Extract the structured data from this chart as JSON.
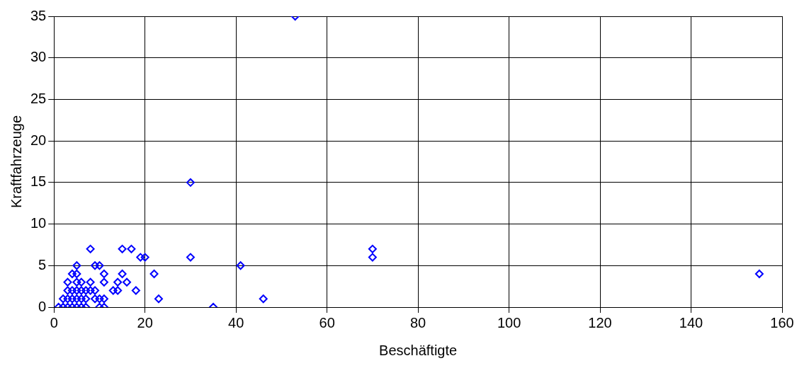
{
  "chart_data": {
    "type": "scatter",
    "xlabel": "Beschäftigte",
    "ylabel": "Kraftfahrzeuge",
    "x": [
      1,
      2,
      3,
      4,
      5,
      6,
      7,
      10,
      11,
      35,
      2,
      3,
      4,
      5,
      6,
      7,
      9,
      10,
      11,
      23,
      46,
      3,
      4,
      5,
      6,
      7,
      8,
      9,
      13,
      14,
      18,
      3,
      5,
      6,
      8,
      11,
      14,
      16,
      4,
      5,
      11,
      15,
      22,
      155,
      5,
      9,
      10,
      41,
      19,
      20,
      30,
      70,
      8,
      15,
      17,
      70,
      30,
      53
    ],
    "values": [
      0,
      0,
      0,
      0,
      0,
      0,
      0,
      0,
      0,
      0,
      1,
      1,
      1,
      1,
      1,
      1,
      1,
      1,
      1,
      1,
      1,
      2,
      2,
      2,
      2,
      2,
      2,
      2,
      2,
      2,
      2,
      3,
      3,
      3,
      3,
      3,
      3,
      3,
      4,
      4,
      4,
      4,
      4,
      4,
      5,
      5,
      5,
      5,
      6,
      6,
      6,
      6,
      7,
      7,
      7,
      7,
      15,
      35
    ],
    "color": "#0000ff",
    "marker": "diamond",
    "xlim": [
      0,
      160
    ],
    "xticks": [
      0,
      20,
      40,
      60,
      80,
      100,
      120,
      140,
      160
    ],
    "ylim": [
      0,
      35
    ],
    "yticks": [
      0,
      5,
      10,
      15,
      20,
      25,
      30,
      35
    ],
    "grid": true
  }
}
